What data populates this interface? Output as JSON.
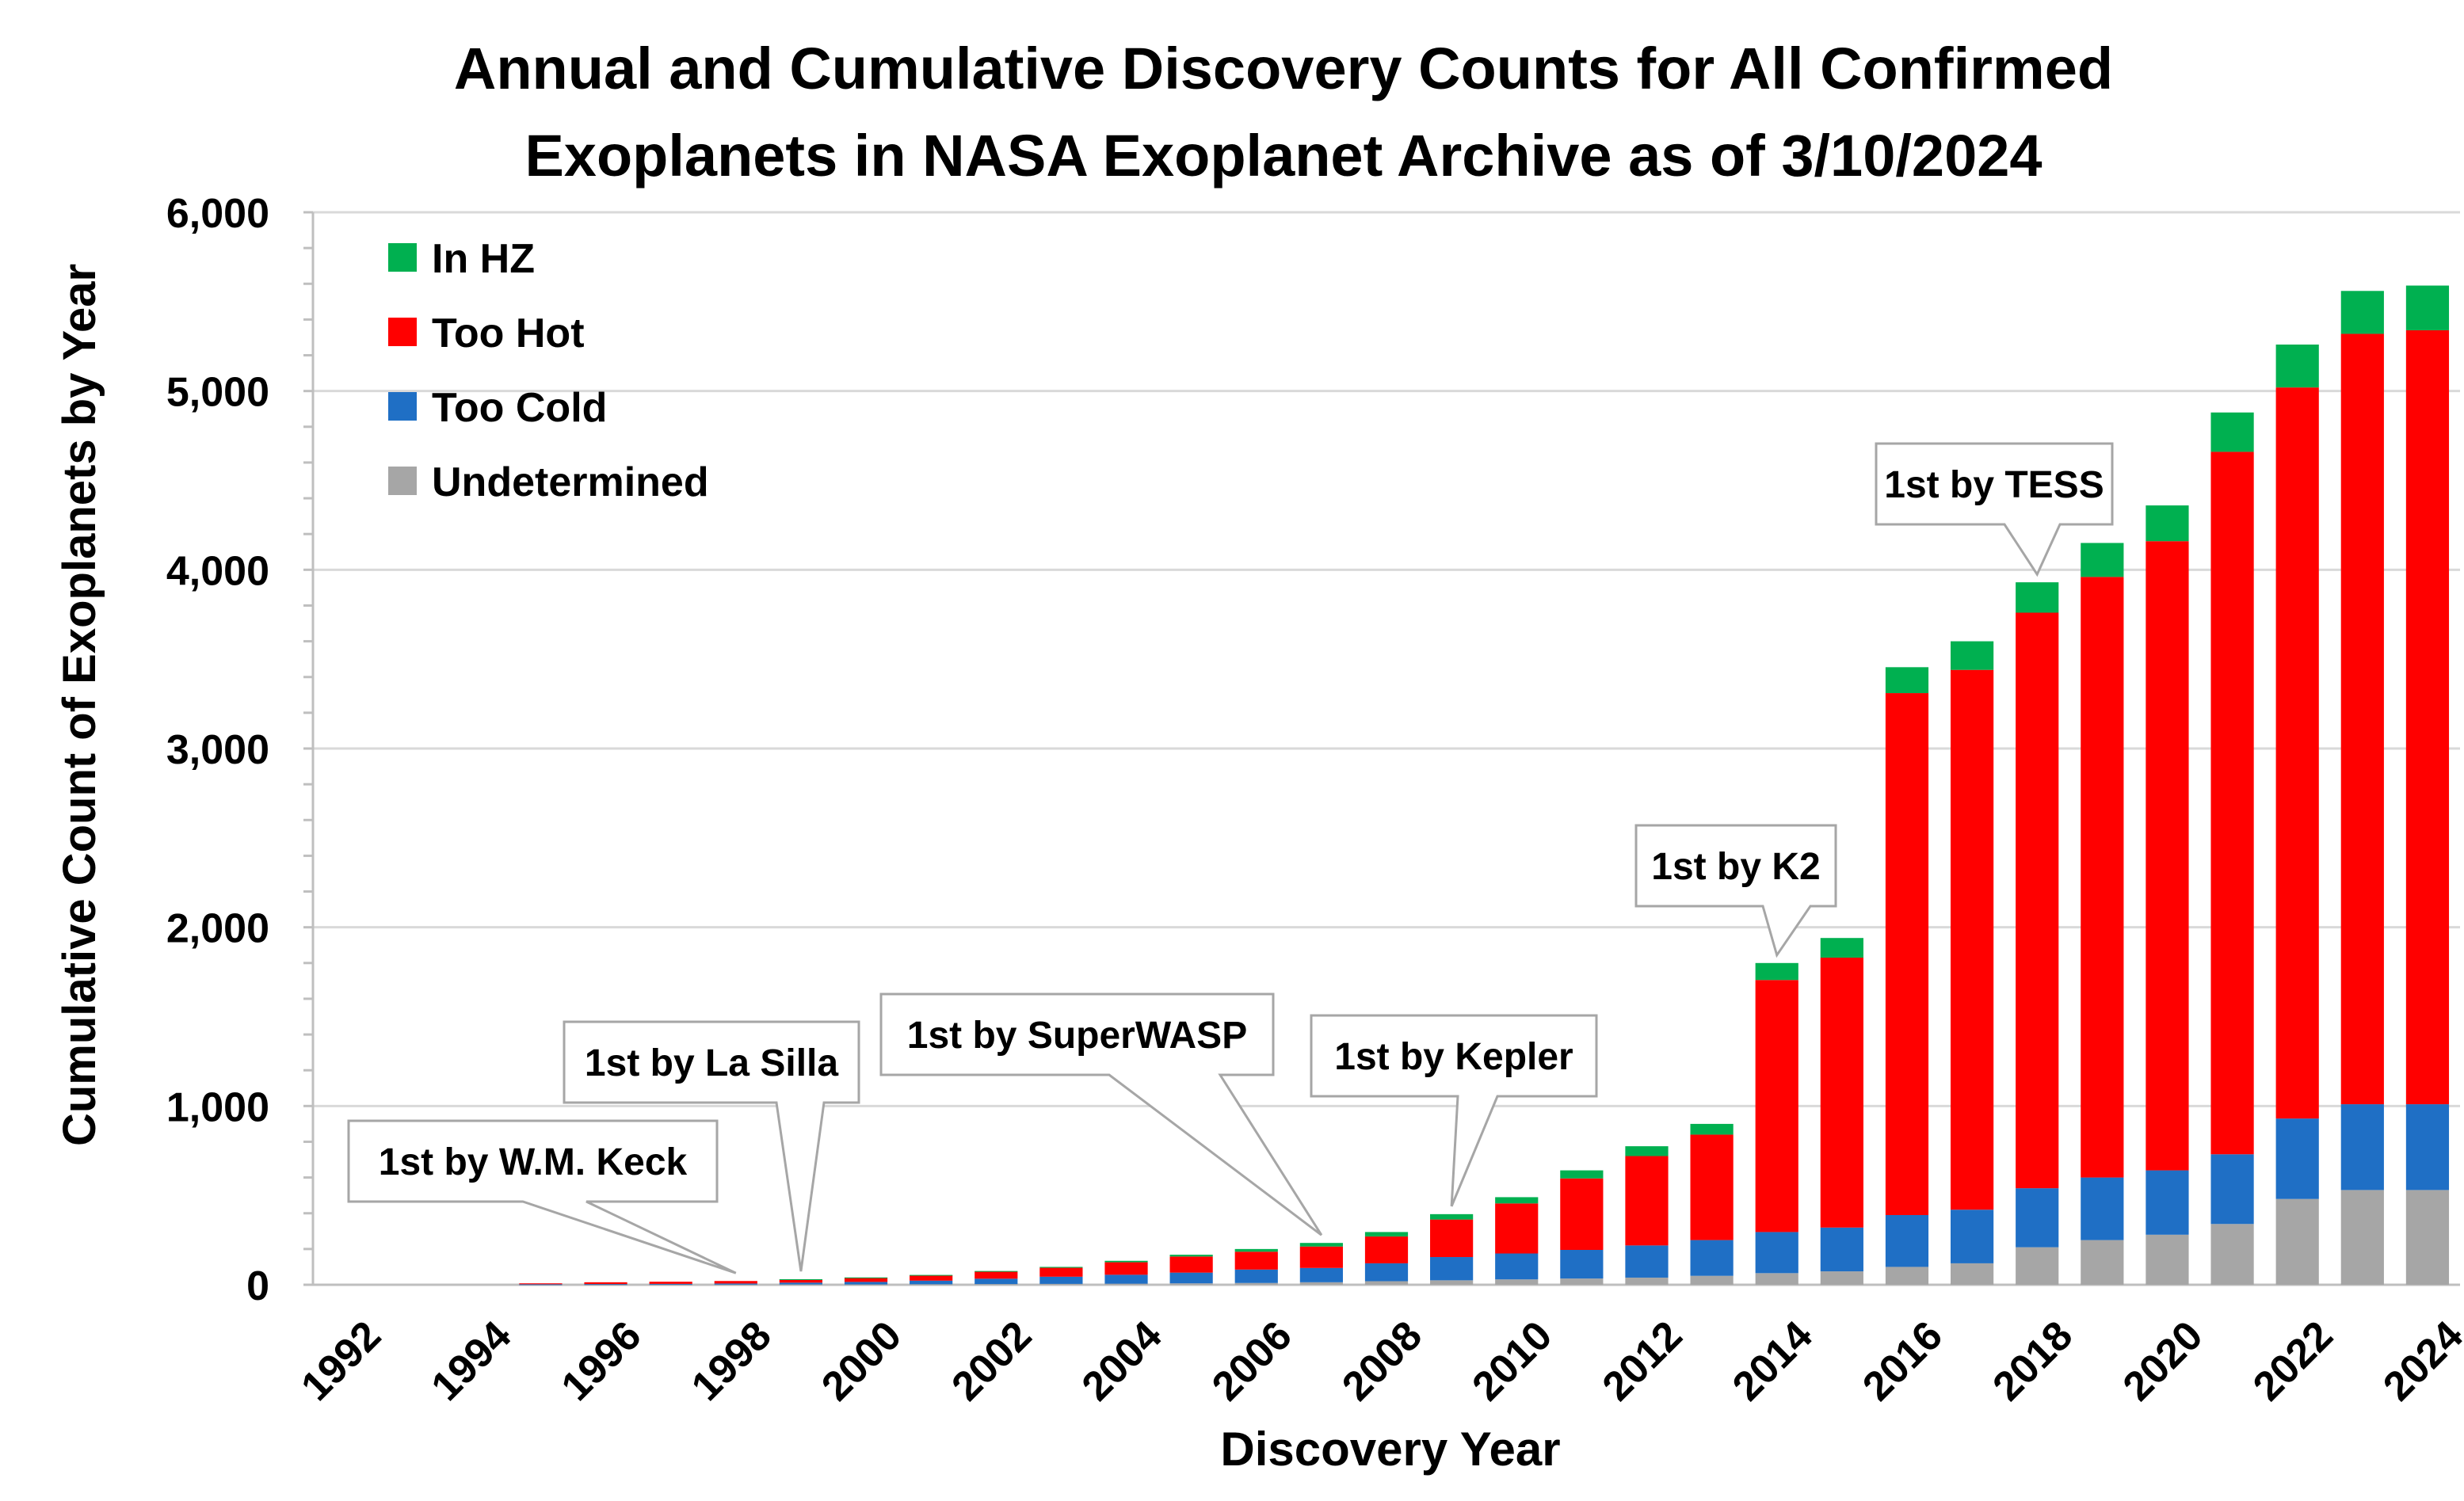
{
  "chart_data": {
    "type": "bar",
    "stacked": true,
    "title_lines": [
      "Annual and Cumulative Discovery Counts for All Confirmed",
      "Exoplanets in NASA Exoplanet Archive as of 3/10/2024"
    ],
    "xlabel": "Discovery Year",
    "ylabel": "Cumulative Count of Exoplanets by Year",
    "ylim": [
      0,
      6000
    ],
    "yticks": [
      0,
      1000,
      2000,
      3000,
      4000,
      5000,
      6000
    ],
    "ytick_labels": [
      "0",
      "1,000",
      "2,000",
      "3,000",
      "4,000",
      "5,000",
      "6,000"
    ],
    "grid": true,
    "legend_position": "top-left",
    "categories": [
      1992,
      1993,
      1994,
      1995,
      1996,
      1997,
      1998,
      1999,
      2000,
      2001,
      2002,
      2003,
      2004,
      2005,
      2006,
      2007,
      2008,
      2009,
      2010,
      2011,
      2012,
      2013,
      2014,
      2015,
      2016,
      2017,
      2018,
      2019,
      2020,
      2021,
      2022,
      2023,
      2024
    ],
    "xtick_labels": [
      "1992",
      "1994",
      "1996",
      "1998",
      "2000",
      "2002",
      "2004",
      "2006",
      "2008",
      "2010",
      "2012",
      "2014",
      "2016",
      "2018",
      "2020",
      "2022",
      "2024"
    ],
    "series": [
      {
        "name": "Undetermined",
        "color": "#a6a6a6",
        "values": [
          0,
          0,
          0,
          1,
          1,
          1,
          1,
          2,
          2,
          3,
          4,
          5,
          6,
          8,
          10,
          14,
          20,
          25,
          30,
          35,
          40,
          50,
          65,
          75,
          100,
          120,
          210,
          250,
          280,
          340,
          480,
          530,
          530
        ]
      },
      {
        "name": "Too Cold",
        "color": "#1f6fc5",
        "values": [
          0,
          0,
          0,
          2,
          3,
          4,
          6,
          10,
          14,
          20,
          30,
          40,
          50,
          60,
          75,
          80,
          100,
          130,
          145,
          160,
          180,
          200,
          230,
          245,
          290,
          300,
          330,
          350,
          360,
          390,
          450,
          480,
          480
        ]
      },
      {
        "name": "Too Hot",
        "color": "#ff0000",
        "values": [
          0,
          0,
          0,
          5,
          10,
          12,
          14,
          18,
          24,
          30,
          40,
          50,
          70,
          90,
          100,
          120,
          150,
          210,
          280,
          400,
          500,
          590,
          1410,
          1510,
          2920,
          3020,
          3220,
          3360,
          3520,
          3930,
          4090,
          4310,
          4330
        ]
      },
      {
        "name": "In HZ",
        "color": "#00b050",
        "values": [
          0,
          0,
          0,
          0,
          0,
          0,
          0,
          1,
          1,
          2,
          3,
          5,
          8,
          10,
          15,
          20,
          25,
          30,
          35,
          45,
          55,
          60,
          95,
          110,
          145,
          160,
          170,
          190,
          200,
          220,
          240,
          240,
          250
        ]
      }
    ],
    "legend_order": [
      "In HZ",
      "Too Hot",
      "Too Cold",
      "Undetermined"
    ],
    "annotations": [
      {
        "label": "1st by W.M. Keck",
        "year": 1998
      },
      {
        "label": "1st by La Silla",
        "year": 1999
      },
      {
        "label": "1st by SuperWASP",
        "year": 2007
      },
      {
        "label": "1st by Kepler",
        "year": 2009
      },
      {
        "label": "1st by K2",
        "year": 2014
      },
      {
        "label": "1st by TESS",
        "year": 2018
      }
    ]
  }
}
